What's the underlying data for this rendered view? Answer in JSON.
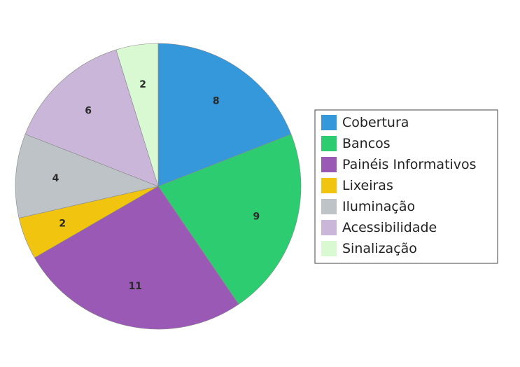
{
  "chart_data": {
    "type": "pie",
    "title": "",
    "start_angle_deg": 0,
    "direction": "clockwise",
    "legend_position": "right",
    "slices": [
      {
        "label": "Cobertura",
        "value": 8,
        "color": "#3498db"
      },
      {
        "label": "Bancos",
        "value": 9,
        "color": "#2ecc71"
      },
      {
        "label": "Painéis Informativos",
        "value": 11,
        "color": "#9b59b6"
      },
      {
        "label": "Lixeiras",
        "value": 2,
        "color": "#f1c40f"
      },
      {
        "label": "Iluminação",
        "value": 4,
        "color": "#bdc3c7"
      },
      {
        "label": "Acessibilidade",
        "value": 6,
        "color": "#c9b6d8"
      },
      {
        "label": "Sinalização",
        "value": 2,
        "color": "#d9f9d2"
      }
    ]
  }
}
